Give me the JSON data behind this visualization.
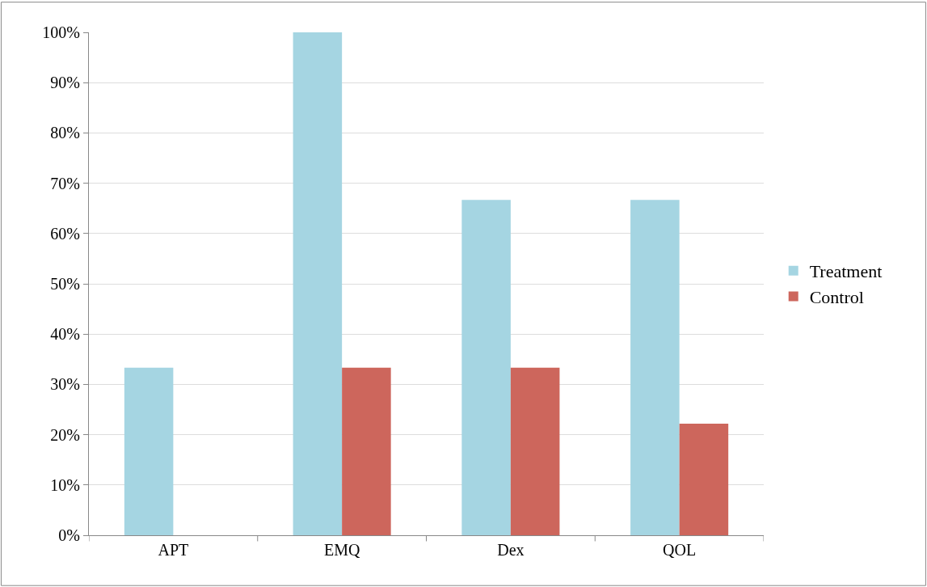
{
  "chart_data": {
    "type": "bar",
    "categories": [
      "APT",
      "EMQ",
      "Dex",
      "QOL"
    ],
    "series": [
      {
        "name": "Treatment",
        "color": "#a5d5e2",
        "values": [
          33.3,
          100,
          66.7,
          66.7
        ]
      },
      {
        "name": "Control",
        "color": "#cd665c",
        "values": [
          0,
          33.3,
          33.3,
          22.2
        ]
      }
    ],
    "ylim": [
      0,
      100
    ],
    "yticks": [
      {
        "value": 0,
        "label": "0%"
      },
      {
        "value": 10,
        "label": "10%"
      },
      {
        "value": 20,
        "label": "20%"
      },
      {
        "value": 30,
        "label": "30%"
      },
      {
        "value": 40,
        "label": "40%"
      },
      {
        "value": 50,
        "label": "50%"
      },
      {
        "value": 60,
        "label": "60%"
      },
      {
        "value": 70,
        "label": "70%"
      },
      {
        "value": 80,
        "label": "80%"
      },
      {
        "value": 90,
        "label": "90%"
      },
      {
        "value": 100,
        "label": "100%"
      }
    ],
    "grid": "y",
    "legend": "right"
  }
}
